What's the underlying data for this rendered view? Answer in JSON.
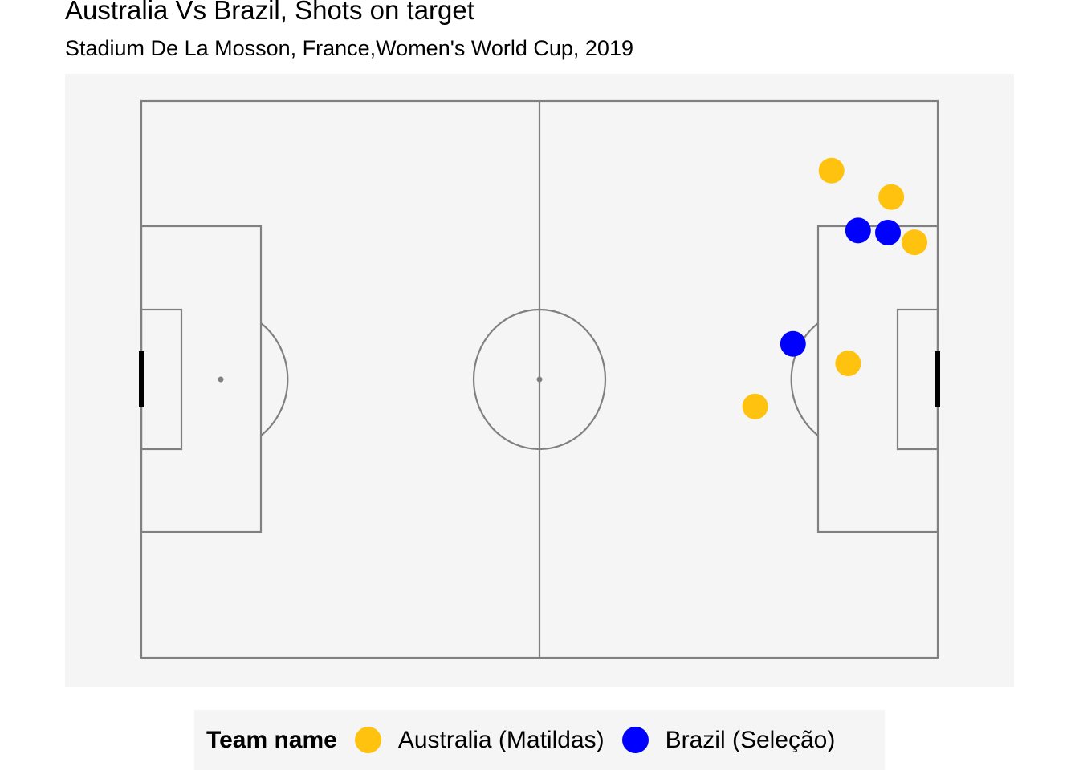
{
  "chart_data": {
    "type": "scatter",
    "title": "Australia Vs Brazil, Shots on target",
    "subtitle": "Stadium De La Mosson, France,Women's World Cup, 2019",
    "xlim": [
      0,
      120
    ],
    "ylim": [
      0,
      80
    ],
    "grid": false,
    "legend": {
      "title": "Team name",
      "position": "bottom"
    },
    "series": [
      {
        "name": "Australia (Matildas)",
        "color": "#FFC20E",
        "points": [
          {
            "x": 104.0,
            "y": 30.0
          },
          {
            "x": 113.0,
            "y": 26.2
          },
          {
            "x": 116.5,
            "y": 19.7
          },
          {
            "x": 106.5,
            "y": 2.3
          },
          {
            "x": 92.5,
            "y": -3.9
          }
        ]
      },
      {
        "name": "Brazil (Seleção)",
        "color": "#0000FF",
        "points": [
          {
            "x": 108.0,
            "y": 21.4
          },
          {
            "x": 112.5,
            "y": 21.1
          },
          {
            "x": 98.2,
            "y": 5.1
          }
        ]
      }
    ]
  }
}
